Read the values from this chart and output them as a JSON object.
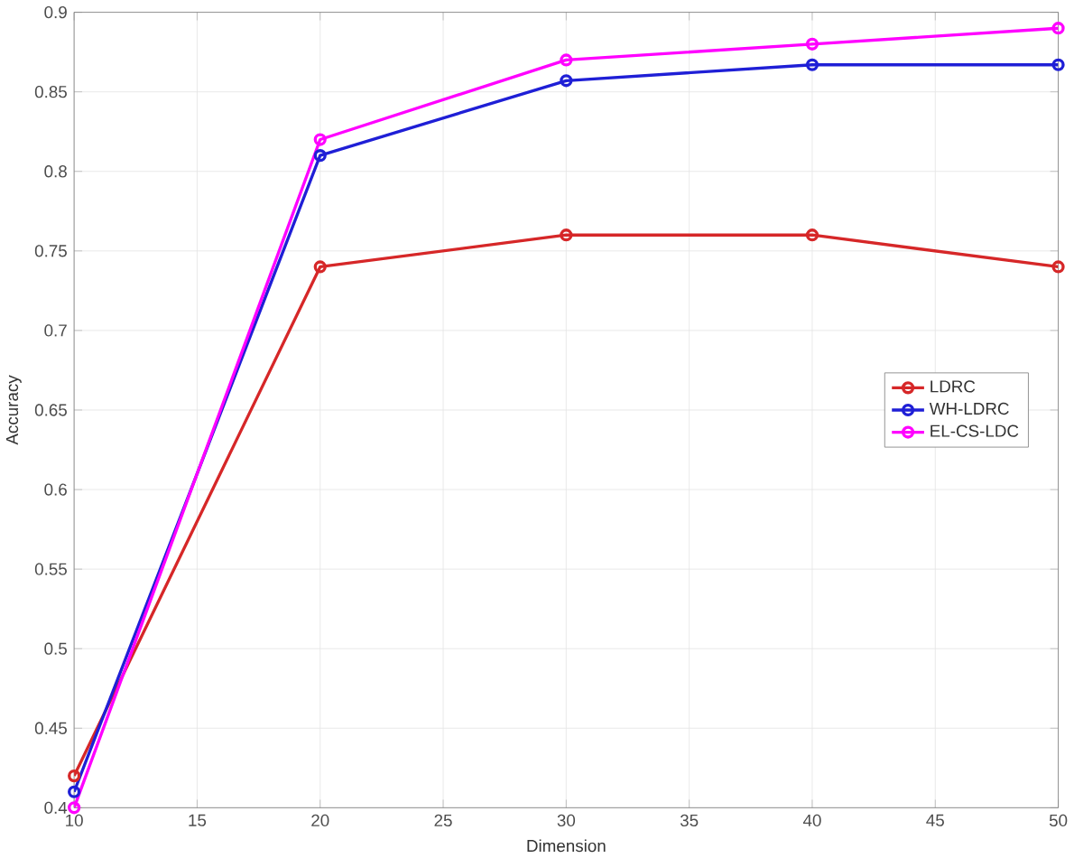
{
  "chart_data": {
    "type": "line",
    "xlabel": "Dimension",
    "ylabel": "Accuracy",
    "x": [
      10,
      20,
      30,
      40,
      50
    ],
    "series": [
      {
        "name": "LDRC",
        "color": "#d62728",
        "values": [
          0.42,
          0.74,
          0.76,
          0.76,
          0.74
        ]
      },
      {
        "name": "WH-LDRC",
        "color": "#1f1fd6",
        "values": [
          0.41,
          0.81,
          0.857,
          0.867,
          0.867
        ]
      },
      {
        "name": "EL-CS-LDC",
        "color": "#ff00ff",
        "values": [
          0.4,
          0.82,
          0.87,
          0.88,
          0.89
        ]
      }
    ],
    "xlim": [
      10,
      50
    ],
    "xticks": [
      10,
      15,
      20,
      25,
      30,
      35,
      40,
      45,
      50
    ],
    "ylim": [
      0.4,
      0.9
    ],
    "yticks": [
      0.4,
      0.45,
      0.5,
      0.55,
      0.6,
      0.65,
      0.7,
      0.75,
      0.8,
      0.85,
      0.9
    ],
    "grid": true,
    "legend": "right",
    "marker": "circle",
    "line_style": "solid"
  }
}
